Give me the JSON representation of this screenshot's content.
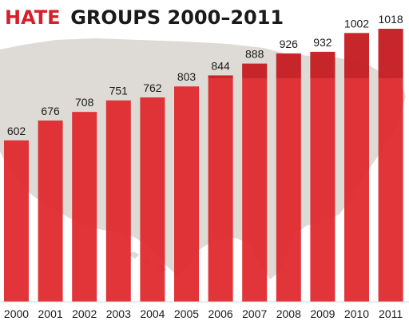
{
  "chart_data": {
    "type": "bar",
    "title_highlight": "HATE",
    "title_rest": "GROUPS 2000–2011",
    "categories": [
      "2000",
      "2001",
      "2002",
      "2003",
      "2004",
      "2005",
      "2006",
      "2007",
      "2008",
      "2009",
      "2010",
      "2011"
    ],
    "values": [
      602,
      676,
      708,
      751,
      762,
      803,
      844,
      888,
      926,
      932,
      1002,
      1018
    ],
    "ylim": [
      0,
      1018
    ],
    "grid": false,
    "legend": "none",
    "colors": {
      "bar": "#e0262b",
      "bar_shadow": "#b0191f",
      "title_accent": "#d4202a",
      "map": "#dedbd6"
    }
  }
}
